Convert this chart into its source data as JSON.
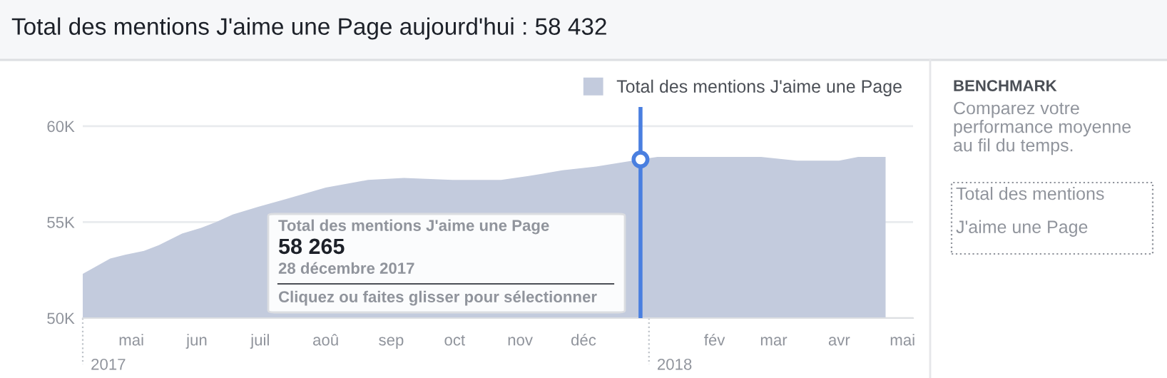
{
  "chart_data": {
    "type": "area",
    "title": "Total des mentions J'aime une Page aujourd'hui : 58 432",
    "x": [
      "2017-04-08",
      "2017-04-21",
      "2017-04-28",
      "2017-05-07",
      "2017-05-14",
      "2017-05-25",
      "2017-06-03",
      "2017-06-10",
      "2017-06-18",
      "2017-06-30",
      "2017-07-13",
      "2017-08-01",
      "2017-08-21",
      "2017-09-07",
      "2017-09-30",
      "2017-10-23",
      "2017-11-05",
      "2017-11-21",
      "2017-12-07",
      "2017-12-28",
      "2018-01-05",
      "2018-02-01",
      "2018-02-23",
      "2018-03-12",
      "2018-04-01",
      "2018-04-10",
      "2018-04-23"
    ],
    "series": [
      {
        "name": "Total des mentions J'aime une Page",
        "color": "#c3cbdd",
        "values": [
          52300,
          53100,
          53300,
          53500,
          53800,
          54400,
          54700,
          55000,
          55400,
          55800,
          56200,
          56800,
          57200,
          57300,
          57200,
          57200,
          57400,
          57700,
          57900,
          58265,
          58400,
          58400,
          58400,
          58200,
          58200,
          58400,
          58400
        ]
      }
    ],
    "xlim": [
      "2017-04-08",
      "2018-05-06"
    ],
    "xticks": [
      {
        "value": "2017-05-01",
        "label": "mai"
      },
      {
        "value": "2017-06-01",
        "label": "jun"
      },
      {
        "value": "2017-07-01",
        "label": "juil"
      },
      {
        "value": "2017-08-01",
        "label": "aoû"
      },
      {
        "value": "2017-09-01",
        "label": "sep"
      },
      {
        "value": "2017-10-01",
        "label": "oct"
      },
      {
        "value": "2017-11-01",
        "label": "nov"
      },
      {
        "value": "2017-12-01",
        "label": "déc"
      },
      {
        "value": "2018-02-01",
        "label": "fév"
      },
      {
        "value": "2018-03-01",
        "label": "mar"
      },
      {
        "value": "2018-04-01",
        "label": "avr"
      },
      {
        "value": "2018-05-01",
        "label": "mai"
      }
    ],
    "ylim": [
      50000,
      61000
    ],
    "yticks": [
      {
        "value": 50000,
        "label": "50K"
      },
      {
        "value": 55000,
        "label": "55K"
      },
      {
        "value": 60000,
        "label": "60K"
      }
    ],
    "grid": "y",
    "legend": "top right",
    "ref_lines": [
      {
        "axis": "x",
        "value": "2017-12-28",
        "color": "#4a7fe0"
      }
    ],
    "annotations": [
      "BENCHMARK",
      "Comparez votre\nperformance moyenne\nau fil du temps.",
      "Total des mentions\n\nJ'aime une Page",
      "Total des mentions J'aime une Page",
      "58 265",
      "28 décembre 2017",
      "Cliquez ou faites glisser pour sélectionner",
      {
        "text": "2017",
        "x": "2017-04-08",
        "y": 50000
      },
      {
        "text": "2018",
        "x": "2018-01-01",
        "y": 50000
      }
    ]
  }
}
